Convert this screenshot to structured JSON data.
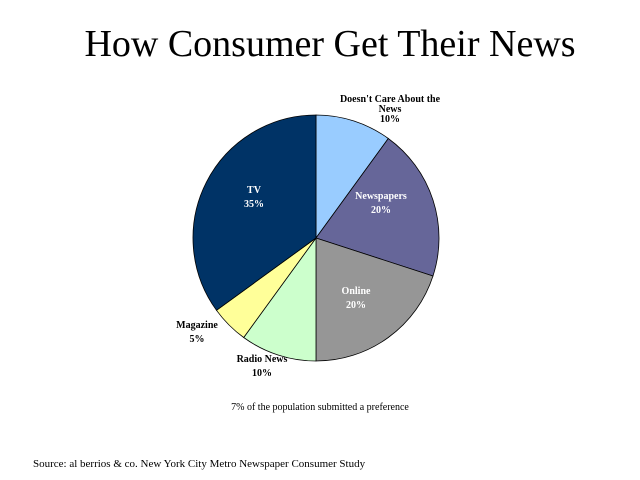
{
  "title": "How Consumer Get Their News",
  "footnote": "7% of the population submitted a preference",
  "source": "Source: al berrios & co. New York City Metro Newspaper Consumer Study",
  "chart_data": {
    "type": "pie",
    "title": "How Consumer Get Their News",
    "slices": [
      {
        "label": [
          "Doesn't Care About the",
          "News"
        ],
        "value": 10,
        "value_label": "10%",
        "color": "#99ccff",
        "label_color": "#000000"
      },
      {
        "label": [
          "Newspapers"
        ],
        "value": 20,
        "value_label": "20%",
        "color": "#666699",
        "label_color": "#ffffff"
      },
      {
        "label": [
          "Online"
        ],
        "value": 20,
        "value_label": "20%",
        "color": "#969696",
        "label_color": "#ffffff"
      },
      {
        "label": [
          "Radio News"
        ],
        "value": 10,
        "value_label": "10%",
        "color": "#ccffcc",
        "label_color": "#000000"
      },
      {
        "label": [
          "Magazine"
        ],
        "value": 5,
        "value_label": "5%",
        "color": "#ffff99",
        "label_color": "#000000"
      },
      {
        "label": [
          "TV"
        ],
        "value": 35,
        "value_label": "35%",
        "color": "#003366",
        "label_color": "#ffffff"
      }
    ]
  }
}
